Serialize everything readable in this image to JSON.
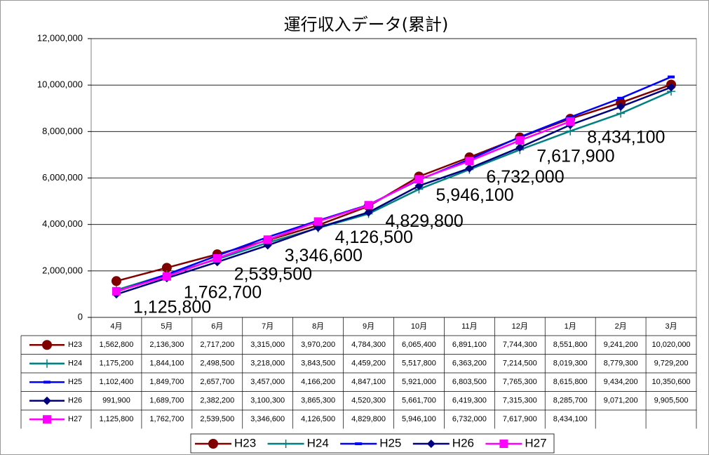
{
  "chart_data": {
    "type": "line",
    "title": "運行収入データ(累計)",
    "categories": [
      "4月",
      "5月",
      "6月",
      "7月",
      "8月",
      "9月",
      "10月",
      "11月",
      "12月",
      "1月",
      "2月",
      "3月"
    ],
    "ylim": [
      0,
      12000000
    ],
    "yticks": [
      {
        "value": 0,
        "label": "0"
      },
      {
        "value": 2000000,
        "label": "2,000,000"
      },
      {
        "value": 4000000,
        "label": "4,000,000"
      },
      {
        "value": 6000000,
        "label": "6,000,000"
      },
      {
        "value": 8000000,
        "label": "8,000,000"
      },
      {
        "value": 10000000,
        "label": "10,000,000"
      },
      {
        "value": 12000000,
        "label": "12,000,000"
      }
    ],
    "grid": true,
    "legend": "bottom",
    "series": [
      {
        "name": "H23",
        "color": "#800000",
        "marker": "circle",
        "values": [
          1562800,
          2136300,
          2717200,
          3315000,
          3970200,
          4784300,
          6065400,
          6891100,
          7744300,
          8551800,
          9241200,
          10020000
        ],
        "value_labels": [
          "1,562,800",
          "2,136,300",
          "2,717,200",
          "3,315,000",
          "3,970,200",
          "4,784,300",
          "6,065,400",
          "6,891,100",
          "7,744,300",
          "8,551,800",
          "9,241,200",
          "10,020,000"
        ]
      },
      {
        "name": "H24",
        "color": "#008080",
        "marker": "plus",
        "values": [
          1175200,
          1844100,
          2498500,
          3218000,
          3843500,
          4459200,
          5517800,
          6363200,
          7214500,
          8019300,
          8779300,
          9729200
        ],
        "value_labels": [
          "1,175,200",
          "1,844,100",
          "2,498,500",
          "3,218,000",
          "3,843,500",
          "4,459,200",
          "5,517,800",
          "6,363,200",
          "7,214,500",
          "8,019,300",
          "8,779,300",
          "9,729,200"
        ]
      },
      {
        "name": "H25",
        "color": "#0000FF",
        "marker": "dash",
        "values": [
          1102400,
          1849700,
          2657700,
          3457000,
          4166200,
          4847100,
          5921000,
          6803500,
          7765300,
          8615800,
          9434200,
          10350600
        ],
        "value_labels": [
          "1,102,400",
          "1,849,700",
          "2,657,700",
          "3,457,000",
          "4,166,200",
          "4,847,100",
          "5,921,000",
          "6,803,500",
          "7,765,300",
          "8,615,800",
          "9,434,200",
          "10,350,600"
        ]
      },
      {
        "name": "H26",
        "color": "#000080",
        "marker": "diamond",
        "values": [
          991900,
          1689700,
          2382200,
          3100300,
          3865300,
          4520300,
          5661700,
          6419300,
          7315300,
          8285700,
          9071200,
          9905500
        ],
        "value_labels": [
          "991,900",
          "1,689,700",
          "2,382,200",
          "3,100,300",
          "3,865,300",
          "4,520,300",
          "5,661,700",
          "6,419,300",
          "7,315,300",
          "8,285,700",
          "9,071,200",
          "9,905,500"
        ]
      },
      {
        "name": "H27",
        "color": "#FF00FF",
        "marker": "square",
        "data_labels": true,
        "values": [
          1125800,
          1762700,
          2539500,
          3346600,
          4126500,
          4829800,
          5946100,
          6732000,
          7617900,
          8434100,
          null,
          null
        ],
        "value_labels": [
          "1,125,800",
          "1,762,700",
          "2,539,500",
          "3,346,600",
          "4,126,500",
          "4,829,800",
          "5,946,100",
          "6,732,000",
          "7,617,900",
          "8,434,100",
          null,
          null
        ]
      }
    ]
  }
}
